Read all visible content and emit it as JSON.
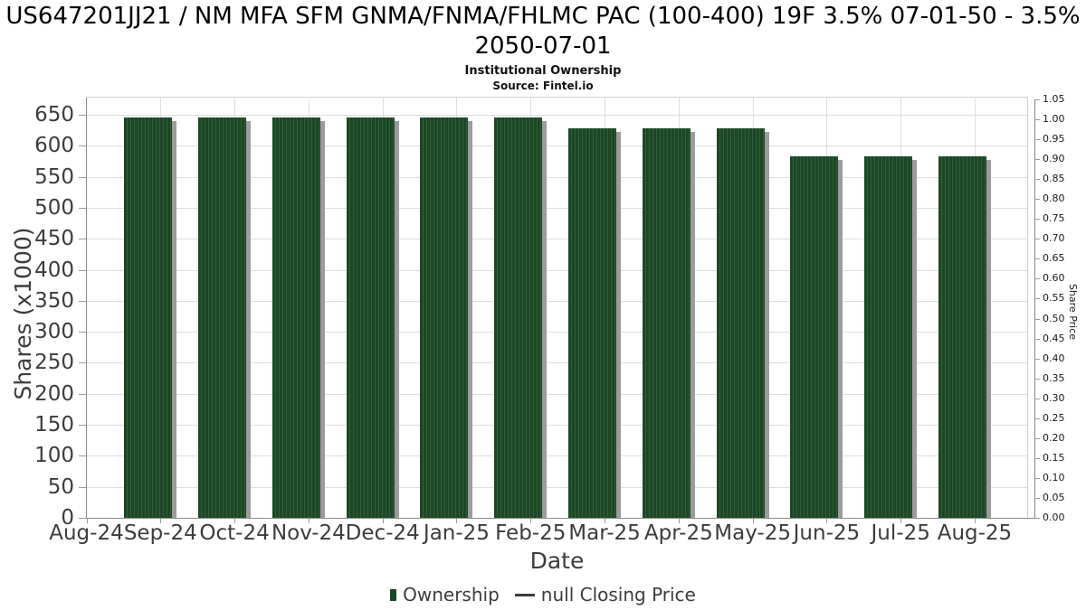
{
  "header": {
    "title": "US647201JJ21 / NM MFA SFM GNMA/FNMA/FHLMC PAC (100-400) 19F 3.5% 07-01-50 - 3.5% 2050-07-01",
    "subtitle": "Institutional Ownership",
    "source": "Source: Fintel.io"
  },
  "colors": {
    "bar_fill": "#1d4626",
    "bar_stripe": "#2f5f38",
    "bar_shadow": "#9c9c9c",
    "gridline": "#dedede",
    "axis_spine": "#8a8a8a",
    "tick_text": "#3c3c3c"
  },
  "chart_data": {
    "type": "bar",
    "title": "US647201JJ21 / NM MFA SFM GNMA/FNMA/FHLMC PAC (100-400) 19F 3.5% 07-01-50 - 3.5% 2050-07-01",
    "subtitle": "Institutional Ownership",
    "source": "Source: Fintel.io",
    "xlabel": "Date",
    "x_ticks": [
      "Aug-24",
      "Sep-24",
      "Oct-24",
      "Nov-24",
      "Dec-24",
      "Jan-25",
      "Feb-25",
      "Mar-25",
      "Apr-25",
      "May-25",
      "Jun-25",
      "Jul-25",
      "Aug-25"
    ],
    "categories": [
      "Sep-24",
      "Oct-24",
      "Nov-24",
      "Dec-24",
      "Jan-25",
      "Feb-25",
      "Mar-25",
      "Apr-25",
      "May-25",
      "Jun-25",
      "Jul-25",
      "Aug-25"
    ],
    "series": [
      {
        "name": "Ownership",
        "type": "bar",
        "values": [
          645,
          645,
          645,
          645,
          645,
          645,
          628,
          628,
          628,
          583,
          583,
          583
        ]
      },
      {
        "name": "null Closing Price",
        "type": "line",
        "values": []
      }
    ],
    "y_left": {
      "label": "Shares (x1000)",
      "ticks": [
        0,
        50,
        100,
        150,
        200,
        250,
        300,
        350,
        400,
        450,
        500,
        550,
        600,
        650
      ],
      "axis_max": 677
    },
    "y_right": {
      "label": "Share Price",
      "tick_labels": [
        "0.00",
        "0.05",
        "0.10",
        "0.15",
        "0.20",
        "0.25",
        "0.30",
        "0.35",
        "0.40",
        "0.45",
        "0.50",
        "0.55",
        "0.60",
        "0.65",
        "0.70",
        "0.75",
        "0.80",
        "0.85",
        "0.90",
        "0.95",
        "1.00",
        "1.05"
      ],
      "axis_min": 0,
      "axis_max": 1.05
    },
    "grid": true,
    "legend_position": "bottom",
    "legend": [
      {
        "label": "Ownership",
        "marker": "square"
      },
      {
        "label": "null Closing Price",
        "marker": "line"
      }
    ]
  }
}
